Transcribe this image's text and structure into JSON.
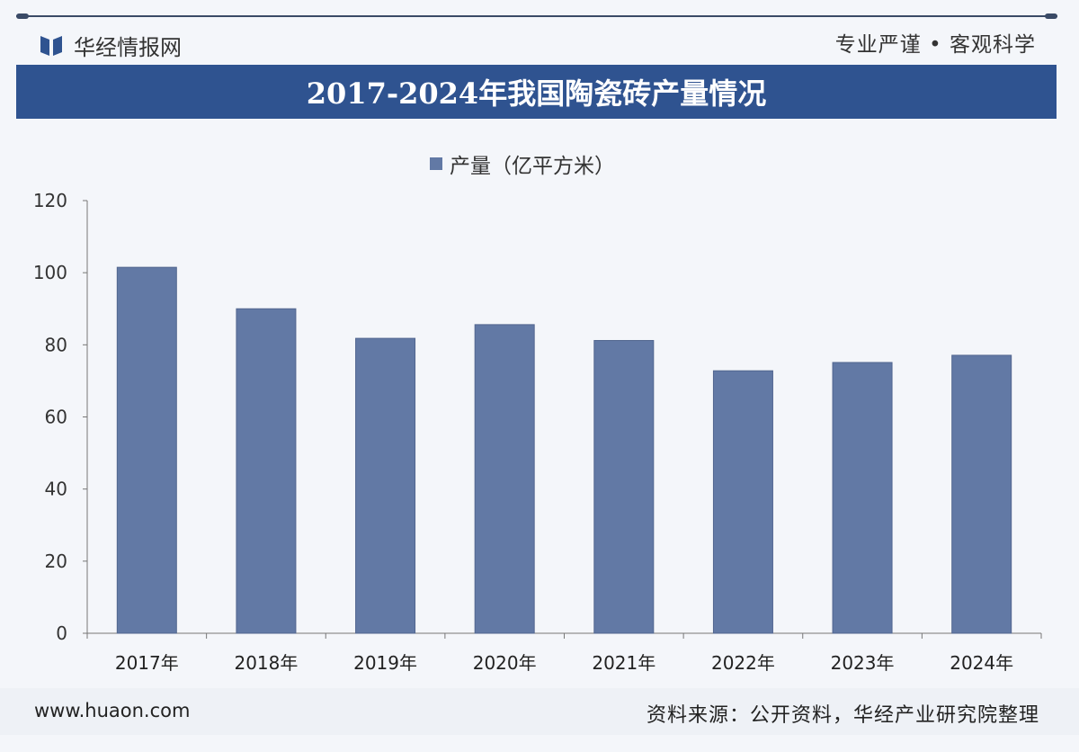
{
  "header": {
    "logo_text": "华经情报网",
    "slogan": "专业严谨 • 客观科学"
  },
  "title": "2017-2024年我国陶瓷砖产量情况",
  "colors": {
    "banner": "#2f5390",
    "bar": "#6279a5"
  },
  "chart_data": {
    "type": "bar",
    "title": "2017-2024年我国陶瓷砖产量情况",
    "categories": [
      "2017年",
      "2018年",
      "2019年",
      "2020年",
      "2021年",
      "2022年",
      "2023年",
      "2024年"
    ],
    "series": [
      {
        "name": "产量（亿平方米）",
        "values": [
          101.5,
          90.0,
          81.8,
          85.6,
          81.2,
          72.8,
          75.1,
          77.1
        ]
      }
    ],
    "ylim": [
      0,
      120
    ],
    "yticks": [
      0,
      20,
      40,
      60,
      80,
      100,
      120
    ],
    "legend": "top-center",
    "grid": false
  },
  "footer": {
    "site": "www.huaon.com",
    "source": "资料来源：公开资料，华经产业研究院整理"
  }
}
